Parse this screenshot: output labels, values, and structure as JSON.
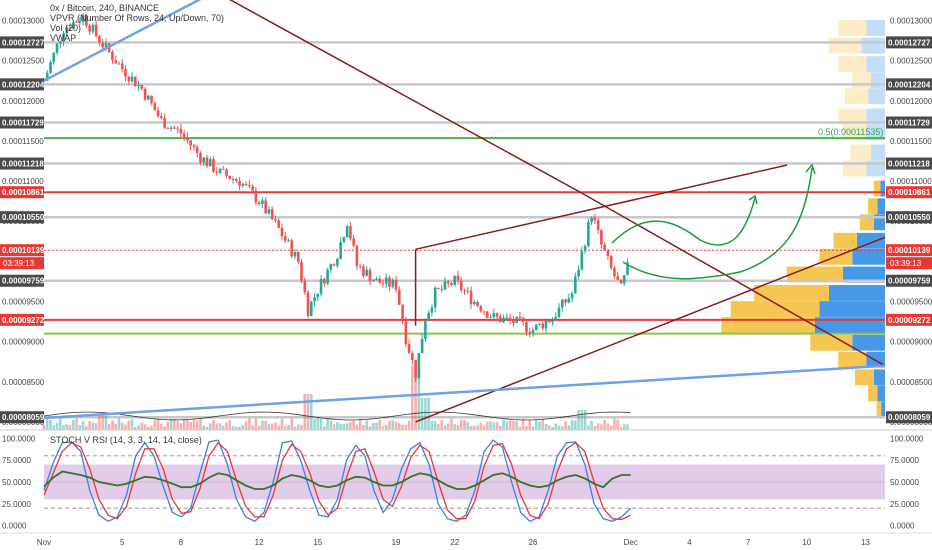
{
  "header": {
    "title": "0x / Bitcoin, 240, BINANCE",
    "indicators": [
      "VPVR (Number Of Rows, 24, Up/Down, 70)",
      "Vol (20)",
      "VWAP"
    ],
    "stoch_label": "STOCH V RSI (14, 3, 3, 14, 14, close)"
  },
  "colors": {
    "up_candle": "#26a69a",
    "down_candle": "#ef5350",
    "red_level": "#e53935",
    "green_level": "#4caf50",
    "trend_dark_red": "#8b1a1a",
    "blue_trend": "#6fa0e8",
    "vp_up": "#f6c34a",
    "vp_down": "#3d93e6",
    "stoch_band": "#d6b7e0",
    "stoch_k": "#3d7fe0",
    "stoch_d": "#e53935",
    "rsi_line": "#3c6e2f",
    "annotation_arrow": "#1b9e3a"
  },
  "chart_data": {
    "type": "candlestick",
    "symbol": "0x / Bitcoin",
    "timeframe": "240",
    "exchange": "BINANCE",
    "price_axis": {
      "range": [
        7.9e-05,
        0.0001318
      ],
      "ticks": [
        "0.00013000",
        "0.00012500",
        "0.00012000",
        "0.00011500",
        "0.00011000",
        "0.00010500",
        "0.00010000",
        "0.00009500",
        "0.00009000",
        "0.00008500",
        "0.00008000"
      ],
      "tick_values": [
        0.00013,
        0.000125,
        0.00012,
        0.000115,
        0.00011,
        0.000105,
        0.0001,
        9.5e-05,
        9e-05,
        8.5e-05,
        8e-05
      ],
      "horizontal_levels": [
        {
          "label": "0.00012727",
          "value": 0.00012727,
          "color": "gray"
        },
        {
          "label": "0.00012204",
          "value": 0.00012204,
          "color": "gray"
        },
        {
          "label": "0.00011729",
          "value": 0.00011729,
          "color": "gray"
        },
        {
          "label": "0.00011218",
          "value": 0.00011218,
          "color": "gray"
        },
        {
          "label": "0.00010861",
          "value": 0.00010861,
          "color": "red"
        },
        {
          "label": "0.00010550",
          "value": 0.0001055,
          "color": "gray"
        },
        {
          "label": "0.00010139",
          "value": 0.00010139,
          "color": "current"
        },
        {
          "label": "0.00009759",
          "value": 9.759e-05,
          "color": "gray"
        },
        {
          "label": "0.00009272",
          "value": 9.272e-05,
          "color": "red"
        },
        {
          "label": "0.00008059",
          "value": 8.059e-05,
          "color": "gray"
        }
      ],
      "current_price": "0.00010139",
      "countdown": "03:39:13",
      "fib_label": "0.5(0.00011535)",
      "fib_value": 0.00011535,
      "green_lower_value": 9.1e-05
    },
    "x_axis": {
      "ticks": [
        {
          "label": "Nov",
          "day": 1
        },
        {
          "label": "5",
          "day": 5
        },
        {
          "label": "8",
          "day": 8
        },
        {
          "label": "12",
          "day": 12
        },
        {
          "label": "15",
          "day": 15
        },
        {
          "label": "19",
          "day": 19
        },
        {
          "label": "22",
          "day": 22
        },
        {
          "label": "26",
          "day": 26
        },
        {
          "label": "Dec",
          "day": 31
        },
        {
          "label": "4",
          "day": 34
        },
        {
          "label": "7",
          "day": 37
        },
        {
          "label": "10",
          "day": 40
        },
        {
          "label": "13",
          "day": 43
        }
      ]
    },
    "price_path": [
      [
        1,
        0.0001225
      ],
      [
        2,
        0.000129
      ],
      [
        3,
        0.0001305
      ],
      [
        4,
        0.000127
      ],
      [
        5,
        0.000124
      ],
      [
        6,
        0.0001215
      ],
      [
        7,
        0.0001175
      ],
      [
        8,
        0.000116
      ],
      [
        9,
        0.000113
      ],
      [
        10,
        0.000111
      ],
      [
        11,
        0.00011
      ],
      [
        12,
        0.0001075
      ],
      [
        13,
        0.000104
      ],
      [
        14,
        0.0001
      ],
      [
        14.5,
        9.4e-05
      ],
      [
        15,
        9.65e-05
      ],
      [
        16,
        0.000101
      ],
      [
        16.5,
        0.000105
      ],
      [
        17,
        9.95e-05
      ],
      [
        18,
        9.75e-05
      ],
      [
        19,
        9.7e-05
      ],
      [
        19.5,
        9.05e-05
      ],
      [
        20,
        8.6e-05
      ],
      [
        20.5,
        9.3e-05
      ],
      [
        21,
        9.6e-05
      ],
      [
        22,
        9.75e-05
      ],
      [
        23,
        9.5e-05
      ],
      [
        24,
        9.3e-05
      ],
      [
        25,
        9.25e-05
      ],
      [
        26,
        9.15e-05
      ],
      [
        27,
        9.3e-05
      ],
      [
        28,
        9.6e-05
      ],
      [
        28.5,
        0.000101
      ],
      [
        29,
        0.000106
      ],
      [
        29.5,
        0.000102
      ],
      [
        30,
        9.9e-05
      ],
      [
        30.5,
        9.65e-05
      ],
      [
        31,
        0.0001005
      ]
    ],
    "volume_spikes": [
      [
        4,
        4
      ],
      [
        14.5,
        9
      ],
      [
        20,
        16
      ],
      [
        20.5,
        8
      ],
      [
        28.5,
        5
      ]
    ],
    "trendlines": [
      {
        "from": [
          -1,
          0.000148
        ],
        "to": [
          28.5,
          0.0001085
        ],
        "color": "dark-red"
      },
      {
        "from": [
          28.5,
          0.0001085
        ],
        "to": [
          44,
          8.7e-05
        ],
        "color": "dark-red"
      },
      {
        "from": [
          20,
          8e-05
        ],
        "to": [
          44,
          0.000103
        ],
        "color": "dark-red"
      },
      {
        "from": [
          20,
          0.0001015
        ],
        "to": [
          20,
          9.2e-05
        ],
        "color": "dark-red"
      },
      {
        "from": [
          20,
          0.0001015
        ],
        "to": [
          39,
          0.000112
        ],
        "color": "dark-red"
      },
      {
        "from": [
          1,
          0.0001225
        ],
        "to": [
          11,
          0.0001352
        ],
        "color": "blue"
      },
      {
        "from": [
          1,
          8.05e-05
        ],
        "to": [
          44,
          8.7e-05
        ],
        "color": "blue"
      }
    ],
    "volume_profile": {
      "rows": [
        {
          "price": 0.000129,
          "up": 0.3,
          "down": 0.2
        },
        {
          "price": 0.0001268,
          "up": 0.35,
          "down": 0.25
        },
        {
          "price": 0.0001245,
          "up": 0.3,
          "down": 0.2
        },
        {
          "price": 0.0001225,
          "up": 0.2,
          "down": 0.15
        },
        {
          "price": 0.0001205,
          "up": 0.25,
          "down": 0.18
        },
        {
          "price": 0.000118,
          "up": 0.3,
          "down": 0.2
        },
        {
          "price": 0.000116,
          "up": 0.25,
          "down": 0.2
        },
        {
          "price": 0.0001135,
          "up": 0.22,
          "down": 0.15
        },
        {
          "price": 0.0001115,
          "up": 0.25,
          "down": 0.2
        },
        {
          "price": 0.000109,
          "up": 0.07,
          "down": 0.05
        },
        {
          "price": 0.0001068,
          "up": 0.1,
          "down": 0.08
        },
        {
          "price": 0.0001048,
          "up": 0.15,
          "down": 0.12
        },
        {
          "price": 0.0001025,
          "up": 0.25,
          "down": 0.3
        },
        {
          "price": 0.0001005,
          "up": 0.35,
          "down": 0.35
        },
        {
          "price": 9.83e-05,
          "up": 0.6,
          "down": 0.45
        },
        {
          "price": 9.6e-05,
          "up": 0.8,
          "down": 0.6
        },
        {
          "price": 9.4e-05,
          "up": 0.95,
          "down": 0.7
        },
        {
          "price": 9.2e-05,
          "up": 1.0,
          "down": 0.75
        },
        {
          "price": 8.98e-05,
          "up": 0.45,
          "down": 0.35
        },
        {
          "price": 8.77e-05,
          "up": 0.3,
          "down": 0.2
        },
        {
          "price": 8.55e-05,
          "up": 0.2,
          "down": 0.12
        },
        {
          "price": 8.35e-05,
          "up": 0.1,
          "down": 0.08
        },
        {
          "price": 8.15e-05,
          "up": 0.05,
          "down": 0.04
        }
      ]
    },
    "stoch_rsi": {
      "label": "STOCH V RSI (14, 3, 3, 14, 14, close)",
      "range": [
        -5,
        105
      ],
      "ticks": [
        "100.0000",
        "75.0000",
        "50.0000",
        "25.0000",
        "0.0000"
      ],
      "tick_values": [
        100,
        75,
        50,
        25,
        0
      ],
      "band": [
        30,
        70
      ],
      "dashed_levels": [
        80,
        20
      ],
      "k_values": [
        40,
        72,
        95,
        96,
        85,
        40,
        12,
        5,
        10,
        35,
        80,
        95,
        80,
        45,
        15,
        10,
        20,
        60,
        96,
        98,
        70,
        30,
        10,
        5,
        15,
        50,
        95,
        97,
        75,
        40,
        12,
        10,
        30,
        75,
        92,
        80,
        40,
        15,
        30,
        65,
        88,
        95,
        70,
        25,
        8,
        5,
        12,
        40,
        85,
        98,
        90,
        50,
        15,
        5,
        10,
        40,
        80,
        95,
        96,
        70,
        25,
        8,
        5,
        10,
        20
      ],
      "d_values": [
        35,
        60,
        85,
        95,
        90,
        65,
        30,
        12,
        8,
        22,
        60,
        88,
        88,
        65,
        30,
        14,
        16,
        42,
        80,
        95,
        85,
        52,
        22,
        10,
        10,
        35,
        75,
        93,
        85,
        60,
        28,
        12,
        20,
        55,
        85,
        88,
        62,
        30,
        22,
        45,
        78,
        92,
        85,
        50,
        18,
        8,
        8,
        28,
        68,
        92,
        94,
        70,
        35,
        12,
        8,
        25,
        62,
        88,
        95,
        85,
        50,
        20,
        8,
        7,
        12
      ],
      "rsi_values": [
        45,
        55,
        62,
        60,
        58,
        55,
        50,
        48,
        46,
        48,
        52,
        56,
        55,
        52,
        48,
        44,
        44,
        48,
        55,
        60,
        58,
        52,
        46,
        42,
        42,
        46,
        54,
        58,
        56,
        52,
        46,
        44,
        46,
        52,
        56,
        55,
        50,
        46,
        46,
        50,
        56,
        60,
        58,
        52,
        46,
        42,
        42,
        46,
        52,
        58,
        60,
        56,
        50,
        46,
        44,
        46,
        52,
        56,
        58,
        54,
        48,
        44,
        54,
        58,
        58
      ]
    }
  }
}
